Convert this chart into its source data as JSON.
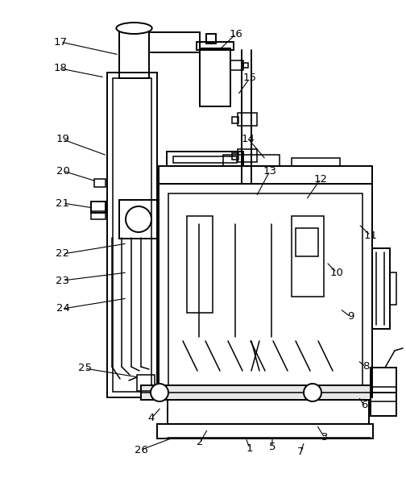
{
  "background_color": "#ffffff",
  "line_color": "#000000",
  "label_fontsize": 9.5,
  "labels_data": [
    [
      "1",
      310,
      556,
      305,
      543
    ],
    [
      "2",
      248,
      549,
      258,
      532
    ],
    [
      "3",
      403,
      543,
      393,
      527
    ],
    [
      "4",
      188,
      519,
      200,
      505
    ],
    [
      "5",
      338,
      555,
      338,
      541
    ],
    [
      "6",
      452,
      503,
      445,
      492
    ],
    [
      "7",
      373,
      560,
      378,
      548
    ],
    [
      "8",
      454,
      455,
      444,
      447
    ],
    [
      "9",
      435,
      393,
      422,
      383
    ],
    [
      "10",
      418,
      338,
      405,
      325
    ],
    [
      "11",
      460,
      292,
      445,
      278
    ],
    [
      "12",
      398,
      222,
      380,
      248
    ],
    [
      "13",
      335,
      212,
      318,
      244
    ],
    [
      "14",
      308,
      172,
      330,
      198
    ],
    [
      "15",
      310,
      97,
      295,
      118
    ],
    [
      "16",
      293,
      42,
      272,
      62
    ],
    [
      "17",
      75,
      52,
      148,
      68
    ],
    [
      "18",
      75,
      85,
      130,
      96
    ],
    [
      "19",
      78,
      173,
      133,
      193
    ],
    [
      "20",
      78,
      212,
      120,
      225
    ],
    [
      "21",
      78,
      252,
      116,
      258
    ],
    [
      "22",
      78,
      315,
      158,
      302
    ],
    [
      "23",
      78,
      348,
      158,
      338
    ],
    [
      "24",
      78,
      383,
      158,
      370
    ],
    [
      "25",
      105,
      457,
      172,
      468
    ],
    [
      "26",
      175,
      558,
      215,
      543
    ]
  ]
}
